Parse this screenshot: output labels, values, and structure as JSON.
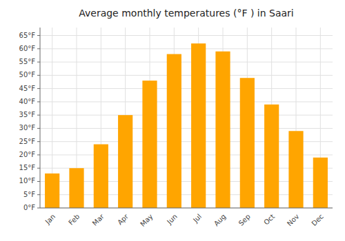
{
  "chart_data": {
    "type": "bar",
    "title": "Average monthly temperatures (°F ) in Saari",
    "categories": [
      "Jan",
      "Feb",
      "Mar",
      "Apr",
      "May",
      "Jun",
      "Jul",
      "Aug",
      "Sep",
      "Oct",
      "Nov",
      "Dec"
    ],
    "values": [
      13,
      15,
      24,
      35,
      48,
      58,
      62,
      59,
      49,
      39,
      29,
      19
    ],
    "color": "#FFA500",
    "ylim": [
      0,
      68
    ],
    "yticks": [
      {
        "value": 0,
        "label": "0°F"
      },
      {
        "value": 5,
        "label": "5°F"
      },
      {
        "value": 10,
        "label": "10°F"
      },
      {
        "value": 15,
        "label": "15°F"
      },
      {
        "value": 20,
        "label": "20°F"
      },
      {
        "value": 25,
        "label": "25°F"
      },
      {
        "value": 30,
        "label": "30°F"
      },
      {
        "value": 35,
        "label": "35°F"
      },
      {
        "value": 40,
        "label": "40°F"
      },
      {
        "value": 45,
        "label": "45°F"
      },
      {
        "value": 50,
        "label": "50°F"
      },
      {
        "value": 55,
        "label": "55°F"
      },
      {
        "value": 60,
        "label": "60°F"
      },
      {
        "value": 65,
        "label": "65°F"
      }
    ],
    "grid": true
  }
}
